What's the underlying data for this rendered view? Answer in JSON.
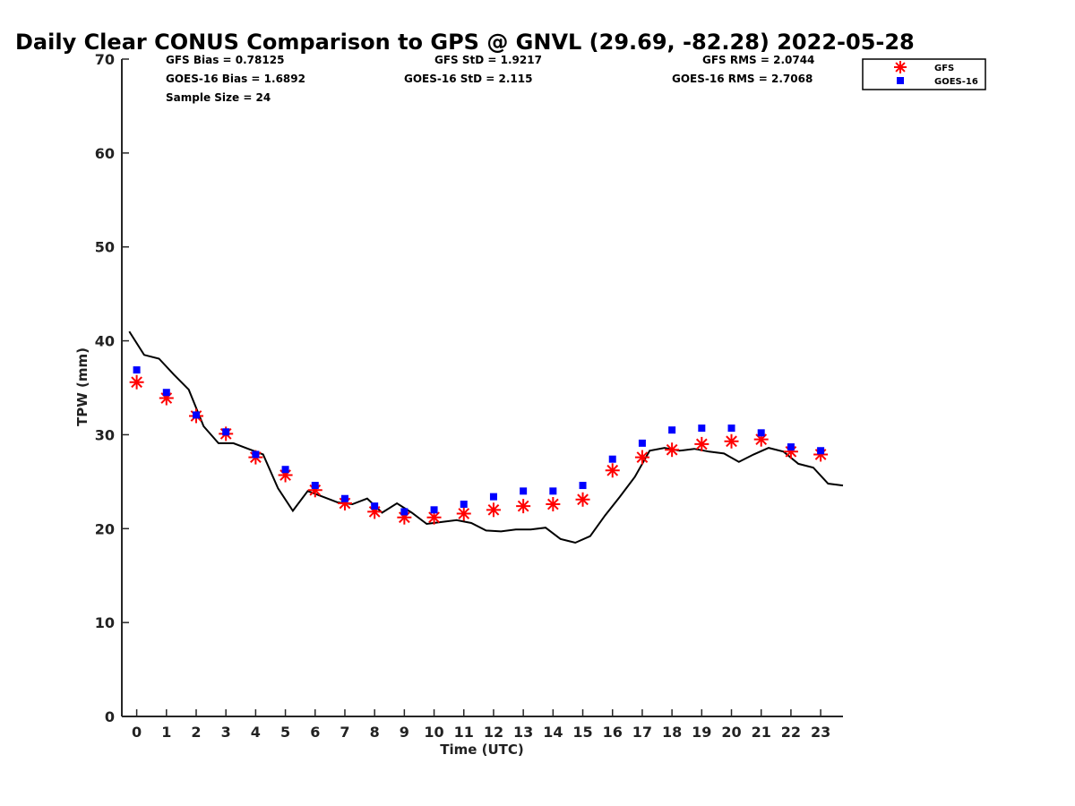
{
  "chart_data": {
    "type": "scatter",
    "title": "Daily Clear CONUS Comparison to GPS @ GNVL (29.69, -82.28) 2022-05-28",
    "xlabel": "Time (UTC)",
    "ylabel": "TPW (mm)",
    "xlim": [
      -0.5,
      23.75
    ],
    "ylim": [
      0,
      70
    ],
    "x_ticks": [
      "0",
      "1",
      "2",
      "3",
      "4",
      "5",
      "6",
      "7",
      "8",
      "9",
      "10",
      "11",
      "12",
      "13",
      "14",
      "15",
      "16",
      "17",
      "18",
      "19",
      "20",
      "21",
      "22",
      "23"
    ],
    "y_ticks": [
      "0",
      "10",
      "20",
      "30",
      "40",
      "50",
      "60",
      "70"
    ],
    "grid": false,
    "legend_position": "top-right (outside)",
    "stats": {
      "gfs_bias": "GFS Bias = 0.78125",
      "goes_bias": "GOES-16 Bias = 1.6892",
      "sample_size": "Sample Size = 24",
      "gfs_std": "GFS StD = 1.9217",
      "goes_std": "GOES-16 StD = 2.115",
      "gfs_rms": "GFS RMS = 2.0744",
      "goes_rms": "GOES-16 RMS = 2.7068"
    },
    "series": [
      {
        "name": "GFS",
        "marker": "asterisk",
        "color": "#ff0000",
        "x": [
          0,
          1,
          2,
          3,
          4,
          5,
          6,
          7,
          8,
          9,
          10,
          11,
          12,
          13,
          14,
          15,
          16,
          17,
          18,
          19,
          20,
          21,
          22,
          23
        ],
        "y": [
          35.6,
          33.9,
          32.0,
          30.1,
          27.6,
          25.7,
          24.1,
          22.7,
          21.8,
          21.2,
          21.2,
          21.6,
          22.0,
          22.4,
          22.6,
          23.1,
          26.2,
          27.6,
          28.4,
          29.0,
          29.3,
          29.5,
          28.2,
          27.9
        ]
      },
      {
        "name": "GOES-16",
        "marker": "square",
        "color": "#0000ff",
        "x": [
          0,
          1,
          2,
          3,
          4,
          5,
          6,
          7,
          8,
          9,
          10,
          11,
          12,
          13,
          14,
          15,
          16,
          17,
          18,
          19,
          20,
          21,
          22,
          23
        ],
        "y": [
          36.9,
          34.5,
          32.1,
          30.3,
          27.9,
          26.3,
          24.6,
          23.2,
          22.4,
          21.8,
          22.0,
          22.6,
          23.4,
          24.0,
          24.0,
          24.6,
          27.4,
          29.1,
          30.5,
          30.7,
          30.7,
          30.2,
          28.7,
          28.3
        ]
      },
      {
        "marker": "line",
        "color": "#000000",
        "x": [
          -0.25,
          0.25,
          0.75,
          1.25,
          1.75,
          2.25,
          2.75,
          3.25,
          3.75,
          4.25,
          4.75,
          5.25,
          5.75,
          6.25,
          6.75,
          7.25,
          7.75,
          8.25,
          8.75,
          9.25,
          9.75,
          10.25,
          10.75,
          11.25,
          11.75,
          12.25,
          12.75,
          13.25,
          13.75,
          14.25,
          14.75,
          15.25,
          15.75,
          16.25,
          16.75,
          17.25,
          17.75,
          18.25,
          18.75,
          19.25,
          19.75,
          20.25,
          20.75,
          21.25,
          21.75,
          22.25,
          22.75,
          23.25,
          23.75
        ],
        "y": [
          41.0,
          38.5,
          38.1,
          36.4,
          34.8,
          30.9,
          29.1,
          29.1,
          28.5,
          27.9,
          24.3,
          21.9,
          24.0,
          23.4,
          22.8,
          22.6,
          23.2,
          21.7,
          22.7,
          21.7,
          20.5,
          20.7,
          20.9,
          20.6,
          19.8,
          19.7,
          19.9,
          19.9,
          20.1,
          18.9,
          18.5,
          19.2,
          21.4,
          23.4,
          25.5,
          28.3,
          28.6,
          28.3,
          28.5,
          28.2,
          28.0,
          27.1,
          27.9,
          28.6,
          28.2,
          26.9,
          26.5,
          24.8,
          24.6
        ]
      }
    ]
  }
}
